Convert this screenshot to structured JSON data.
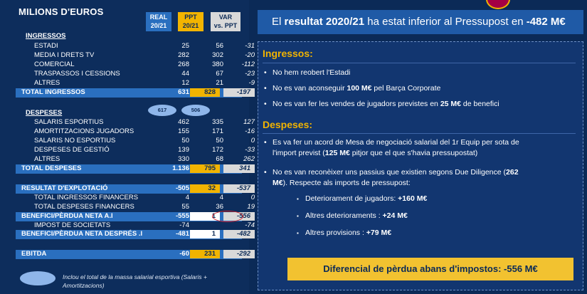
{
  "title": "MILIONS D'EUROS",
  "headers": {
    "real": [
      "REAL",
      "20/21"
    ],
    "ppt": [
      "PPT",
      "20/21"
    ],
    "var": [
      "VAR",
      "vs. PPT"
    ]
  },
  "rows": [
    {
      "label": "INGRESSOS",
      "type": "head"
    },
    {
      "label": "ESTADI",
      "type": "sub",
      "real": "25",
      "ppt": "56",
      "var": "-31"
    },
    {
      "label": "MEDIA I DRETS TV",
      "type": "sub",
      "real": "282",
      "ppt": "302",
      "var": "-20"
    },
    {
      "label": "COMERCIAL",
      "type": "sub",
      "real": "268",
      "ppt": "380",
      "var": "-112"
    },
    {
      "label": "TRASPASSOS I CESSIONS",
      "type": "sub",
      "real": "44",
      "ppt": "67",
      "var": "-23"
    },
    {
      "label": "ALTRES",
      "type": "sub",
      "real": "12",
      "ppt": "21",
      "var": "-9"
    },
    {
      "label": "TOTAL INGRESSOS",
      "type": "tot",
      "real": "631",
      "ppt": "828",
      "var": "-197"
    },
    {
      "label": "DESPESES",
      "type": "head"
    },
    {
      "label": "SALARIS ESPORTIUS",
      "type": "sub",
      "real": "462",
      "ppt": "335",
      "var": "127"
    },
    {
      "label": "AMORTITZACIONS JUGADORS",
      "type": "sub",
      "real": "155",
      "ppt": "171",
      "var": "-16"
    },
    {
      "label": "SALARIS NO ESPORTIUS",
      "type": "sub",
      "real": "50",
      "ppt": "50",
      "var": "0"
    },
    {
      "label": "DESPESES DE GESTIÓ",
      "type": "sub",
      "real": "139",
      "ppt": "172",
      "var": "-33"
    },
    {
      "label": "ALTRES",
      "type": "sub",
      "real": "330",
      "ppt": "68",
      "var": "262"
    },
    {
      "label": "TOTAL DESPESES",
      "type": "tot",
      "real": "1.136",
      "ppt": "795",
      "var": "341"
    },
    {
      "label": "RESULTAT D'EXPLOTACIÓ",
      "type": "tot",
      "real": "-505",
      "ppt": "32",
      "var": "-537"
    },
    {
      "label": "TOTAL INGRESSOS FINANCERS",
      "type": "sub2",
      "real": "4",
      "ppt": "4",
      "var": "0"
    },
    {
      "label": "TOTAL DESPESES FINANCERS",
      "type": "sub2",
      "real": "55",
      "ppt": "36",
      "var": "19"
    },
    {
      "label": "BENEFICI/PÈRDUA NETA A.I",
      "type": "blue",
      "real": "-555",
      "ppt": "1",
      "var": "-556"
    },
    {
      "label": "IMPOST DE SOCIETATS",
      "type": "sub2",
      "real": "-74",
      "ppt": "",
      "var": "-74"
    },
    {
      "label": "BENEFICI/PÈRDUA NETA DESPRÉS .I",
      "type": "blue",
      "real": "-481",
      "ppt": "1",
      "var": "-482"
    },
    {
      "label": "EBITDA",
      "type": "tot",
      "real": "-60",
      "ppt": "231",
      "var": "-292"
    }
  ],
  "pills": [
    "617",
    "506"
  ],
  "legend": "Inclou el total de la massa salarial esportiva (Salaris + Amortitzacions)",
  "banner": {
    "pre": "El ",
    "bold1": "resultat 2020/21",
    "mid": " ha estat inferior al Pressupost en ",
    "bold2": "-482 M€"
  },
  "ingressos": {
    "title": "Ingressos:",
    "bullets": [
      {
        "pre": "No hem reobert l'Estadi",
        "bold": "",
        "post": ""
      },
      {
        "pre": "No es van aconseguir ",
        "bold": "100 M€",
        "post": " pel Barça Corporate"
      },
      {
        "pre": "No es van fer les vendes de jugadors previstes en ",
        "bold": "25 M€",
        "post": " de benefici"
      }
    ]
  },
  "despeses": {
    "title": "Despeses:",
    "b1_line1": "Es va fer un acord de Mesa de negociació salarial del 1r Equip per sota de",
    "b1_pre": "l'import previst (",
    "b1_bold": "125 M€",
    "b1_post": " pitjor que el que s'havia pressupostat)",
    "b2_pre": "No es van reconèixer uns passius que existien segons Due Diligence (",
    "b2_bold": "262",
    "b2_line2_bold": "M€",
    "b2_line2_post": "). Respecte als imports de pressupost:",
    "subs": [
      {
        "pre": "Deteriorament de jugadors: ",
        "bold": "+160 M€"
      },
      {
        "pre": "Altres deterioraments : ",
        "bold": "+24 M€"
      },
      {
        "pre": "Altres provisions : ",
        "bold": "+79 M€"
      }
    ]
  },
  "bottom": "Diferencial de pèrdua abans d'impostos: -556 M€"
}
